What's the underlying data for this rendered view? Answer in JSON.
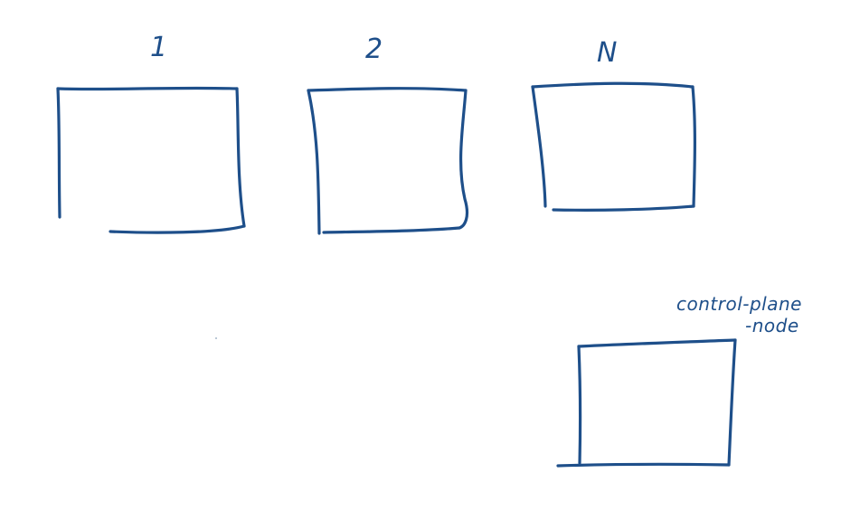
{
  "nodes": [
    {
      "label": "1"
    },
    {
      "label": "2"
    },
    {
      "label": "N"
    }
  ],
  "control_plane": {
    "label_line1": "control-plane",
    "label_line2": "-node"
  },
  "colors": {
    "ink": "#1e4f8a",
    "background": "#ffffff"
  }
}
